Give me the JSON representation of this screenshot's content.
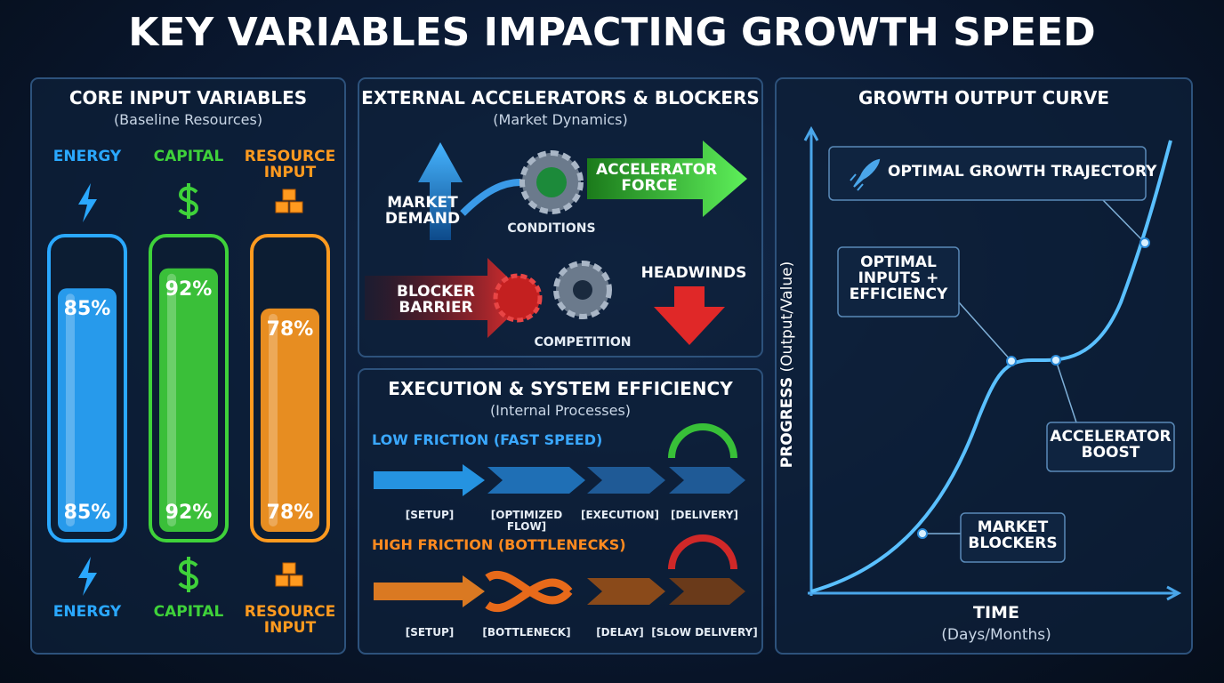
{
  "header": {
    "title": "KEY VARIABLES IMPACTING GROWTH SPEED"
  },
  "core": {
    "title": "CORE INPUT VARIABLES",
    "subtitle": "(Baseline Resources)",
    "gauges": [
      {
        "label": "ENERGY",
        "value": 85,
        "value_label": "85%",
        "color": "#2aa8ff"
      },
      {
        "label": "CAPITAL",
        "value": 92,
        "value_label": "92%",
        "color": "#3fd23a"
      },
      {
        "label": "RESOURCE INPUT",
        "value": 78,
        "value_label": "78%",
        "color": "#ff9a1f"
      }
    ]
  },
  "external": {
    "title": "EXTERNAL ACCELERATORS & BLOCKERS",
    "subtitle": "(Market Dynamics)",
    "market_demand": "MARKET DEMAND",
    "conditions": "CONDITIONS",
    "accelerator": "ACCELERATOR FORCE",
    "blocker": "BLOCKER BARRIER",
    "competition": "COMPETITION",
    "headwinds": "HEADWINDS"
  },
  "execution": {
    "title": "EXECUTION & SYSTEM EFFICIENCY",
    "subtitle": "(Internal Processes)",
    "low": {
      "label": "LOW FRICTION (FAST SPEED)",
      "steps": [
        "[SETUP]",
        "[OPTIMIZED FLOW]",
        "[EXECUTION]",
        "[DELIVERY]"
      ]
    },
    "high": {
      "label": "HIGH FRICTION (BOTTLENECKS)",
      "steps": [
        "[SETUP]",
        "[BOTTLENECK]",
        "[DELAY]",
        "[SLOW DELIVERY]"
      ]
    }
  },
  "curve": {
    "title": "GROWTH OUTPUT CURVE",
    "y_label": "PROGRESS",
    "y_sub": "(Output/Value)",
    "x_label": "TIME",
    "x_sub": "(Days/Months)",
    "callouts": [
      "OPTIMAL GROWTH TRAJECTORY",
      "OPTIMAL INPUTS + EFFICIENCY",
      "ACCELERATOR BOOST",
      "MARKET BLOCKERS"
    ]
  }
}
